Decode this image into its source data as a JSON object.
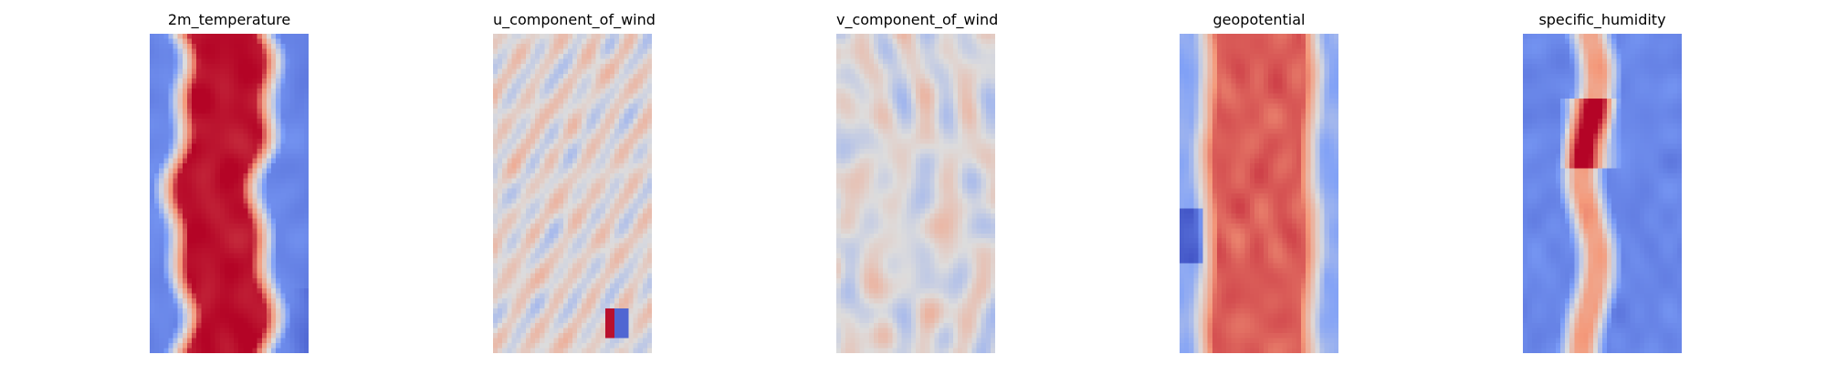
{
  "chart_data": [
    {
      "type": "heatmap",
      "title": "2m_temperature",
      "colormap": "coolwarm",
      "axis": "off",
      "grid": false,
      "pattern": "warm-central-band"
    },
    {
      "type": "heatmap",
      "title": "u_component_of_wind",
      "colormap": "coolwarm",
      "axis": "off",
      "grid": false,
      "pattern": "mostly-neutral-weak-streaks"
    },
    {
      "type": "heatmap",
      "title": "v_component_of_wind",
      "colormap": "coolwarm",
      "axis": "off",
      "grid": false,
      "pattern": "alternating-small-cells"
    },
    {
      "type": "heatmap",
      "title": "geopotential",
      "colormap": "coolwarm",
      "axis": "off",
      "grid": false,
      "pattern": "broad-warm-band"
    },
    {
      "type": "heatmap",
      "title": "specific_humidity",
      "colormap": "coolwarm",
      "axis": "off",
      "grid": false,
      "pattern": "cool-with-narrow-warm-core"
    }
  ]
}
